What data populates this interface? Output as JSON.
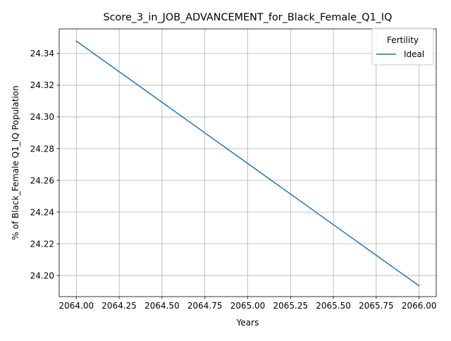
{
  "chart_data": {
    "type": "line",
    "title": "Score_3_in_JOB_ADVANCEMENT_for_Black_Female_Q1_IQ",
    "xlabel": "Years",
    "ylabel": "% of Black_Female Q1_IQ Population",
    "x_ticks": [
      "2064.00",
      "2064.25",
      "2064.50",
      "2064.75",
      "2065.00",
      "2065.25",
      "2065.50",
      "2065.75",
      "2066.00"
    ],
    "y_ticks": [
      "24.20",
      "24.22",
      "24.24",
      "24.26",
      "24.28",
      "24.30",
      "24.32",
      "24.34"
    ],
    "xlim": [
      2063.9,
      2066.1
    ],
    "ylim": [
      24.1867,
      24.3555
    ],
    "grid": true,
    "legend": {
      "title": "Fertility",
      "placement": "upper right"
    },
    "series": [
      {
        "name": "Ideal",
        "color": "#1f77b4",
        "x": [
          2064,
          2066
        ],
        "y": [
          24.3478,
          24.1935
        ]
      }
    ]
  }
}
